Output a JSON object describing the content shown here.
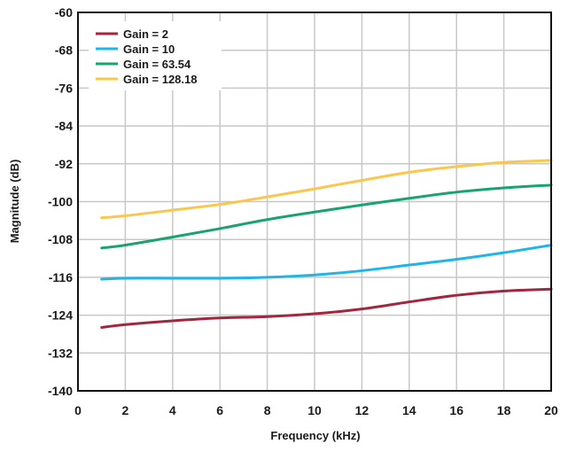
{
  "chart_data": {
    "type": "line",
    "title": "",
    "xlabel": "Frequency (kHz)",
    "ylabel": "Magnitude (dB)",
    "xlim": [
      0,
      20
    ],
    "ylim": [
      -140,
      -60
    ],
    "xticks": [
      "0",
      "2",
      "4",
      "6",
      "8",
      "10",
      "12",
      "14",
      "16",
      "18",
      "20"
    ],
    "yticks": [
      "-60",
      "-68",
      "-76",
      "-84",
      "-92",
      "-100",
      "-108",
      "-116",
      "-124",
      "-132",
      "-140"
    ],
    "grid": true,
    "legend_position": "top-left",
    "series": [
      {
        "name": "Gain = 2",
        "color": "#a3263f",
        "points": [
          [
            1,
            -126.6
          ],
          [
            2,
            -126.0
          ],
          [
            4,
            -125.2
          ],
          [
            6,
            -124.6
          ],
          [
            8,
            -124.3
          ],
          [
            10,
            -123.7
          ],
          [
            12,
            -122.7
          ],
          [
            14,
            -121.2
          ],
          [
            16,
            -119.8
          ],
          [
            18,
            -118.9
          ],
          [
            20,
            -118.5
          ]
        ]
      },
      {
        "name": "Gain = 10",
        "color": "#1fb5ea",
        "points": [
          [
            1,
            -116.4
          ],
          [
            2,
            -116.2
          ],
          [
            4,
            -116.2
          ],
          [
            6,
            -116.2
          ],
          [
            8,
            -116.0
          ],
          [
            10,
            -115.5
          ],
          [
            12,
            -114.6
          ],
          [
            14,
            -113.4
          ],
          [
            16,
            -112.2
          ],
          [
            18,
            -110.8
          ],
          [
            20,
            -109.2
          ]
        ]
      },
      {
        "name": "Gain = 63.54",
        "color": "#18a36f",
        "points": [
          [
            1,
            -109.8
          ],
          [
            2,
            -109.2
          ],
          [
            4,
            -107.5
          ],
          [
            6,
            -105.7
          ],
          [
            8,
            -103.8
          ],
          [
            10,
            -102.2
          ],
          [
            12,
            -100.7
          ],
          [
            14,
            -99.3
          ],
          [
            16,
            -98.0
          ],
          [
            18,
            -97.1
          ],
          [
            20,
            -96.5
          ]
        ]
      },
      {
        "name": "Gain = 128.18",
        "color": "#fbc64d",
        "points": [
          [
            1,
            -103.4
          ],
          [
            2,
            -103.0
          ],
          [
            4,
            -101.8
          ],
          [
            6,
            -100.6
          ],
          [
            8,
            -99.0
          ],
          [
            10,
            -97.3
          ],
          [
            12,
            -95.5
          ],
          [
            14,
            -93.8
          ],
          [
            16,
            -92.6
          ],
          [
            18,
            -91.7
          ],
          [
            20,
            -91.3
          ]
        ]
      }
    ]
  }
}
